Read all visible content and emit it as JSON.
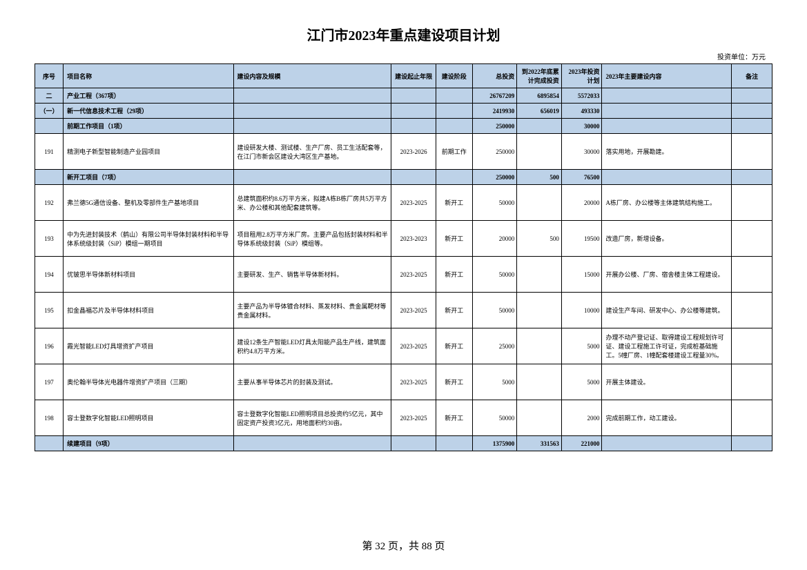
{
  "title": "江门市2023年重点建设项目计划",
  "unit_label": "投资单位：万元",
  "page_number": "第 32 页，共 88 页",
  "columns": {
    "seq": "序号",
    "name": "项目名称",
    "desc": "建设内容及规模",
    "period": "建设起止年限",
    "phase": "建设阶段",
    "total": "总投资",
    "cumulative": "到2022年底累计完成投资",
    "plan": "2023年投资计划",
    "content": "2023年主要建设内容",
    "remark": "备注"
  },
  "rows": [
    {
      "type": "group",
      "seq": "二",
      "name": "产业工程（367项）",
      "total": "26767209",
      "cumulative": "6895854",
      "plan": "5572033"
    },
    {
      "type": "group",
      "seq": "（一）",
      "name": "新一代信息技术工程（29项）",
      "total": "2419930",
      "cumulative": "656019",
      "plan": "493330"
    },
    {
      "type": "group",
      "seq": "",
      "name": "前期工作项目（1项）",
      "total": "250000",
      "cumulative": "",
      "plan": "30000"
    },
    {
      "type": "data",
      "seq": "191",
      "name": "精测电子新型智能制造产业园项目",
      "desc": "建设研发大楼、测试楼、生产厂房、员工生活配套等，在江门市新会区建设大湾区生产基地。",
      "period": "2023-2026",
      "phase": "前期工作",
      "total": "250000",
      "cumulative": "",
      "plan": "30000",
      "content": "落实用地，开展勘建。",
      "remark": ""
    },
    {
      "type": "group",
      "seq": "",
      "name": "新开工项目（7项）",
      "total": "250000",
      "cumulative": "500",
      "plan": "76500"
    },
    {
      "type": "data",
      "seq": "192",
      "name": "弗兰德5G通信设备、整机及零部件生产基地项目",
      "desc": "总建筑面积约8.6万平方米，拟建A栋B栋厂房共5万平方米、办公楼和其他配套建筑等。",
      "period": "2023-2025",
      "phase": "新开工",
      "total": "50000",
      "cumulative": "",
      "plan": "20000",
      "content": "A栋厂房、办公楼等主体建筑结构施工。",
      "remark": ""
    },
    {
      "type": "data",
      "seq": "193",
      "name": "中为先进封装技术（鹤山）有限公司半导体封装材料和半导体系统级封装（SiP）模组一期项目",
      "desc": "项目租用2.8万平方米厂房。主要产品包括封装材料和半导体系统级封装（SiP）模组等。",
      "period": "2023-2023",
      "phase": "新开工",
      "total": "20000",
      "cumulative": "500",
      "plan": "19500",
      "content": "改造厂房，新增设备。",
      "remark": ""
    },
    {
      "type": "data",
      "seq": "194",
      "name": "优铍思半导体新材料项目",
      "desc": "主要研发、生产、销售半导体新材料。",
      "period": "2023-2025",
      "phase": "新开工",
      "total": "50000",
      "cumulative": "",
      "plan": "15000",
      "content": "开展办公楼、厂房、宿舍楼主体工程建设。",
      "remark": ""
    },
    {
      "type": "data",
      "seq": "195",
      "name": "扣金晶福芯片及半导体材料项目",
      "desc": "主要产品为半导体镀合材料、蒸发材料、贵金属靶材等贵金属材料。",
      "period": "2023-2025",
      "phase": "新开工",
      "total": "50000",
      "cumulative": "",
      "plan": "10000",
      "content": "建设生产车间、研发中心、办公楼等建筑。",
      "remark": ""
    },
    {
      "type": "data",
      "seq": "196",
      "name": "霞光智能LED灯具增资扩产项目",
      "desc": "建设12条生产智能LED灯具太阳能产品生产线，建筑面积约4.8万平方米。",
      "period": "2023-2025",
      "phase": "新开工",
      "total": "25000",
      "cumulative": "",
      "plan": "5000",
      "content": "办理不动产登记证、取得建设工程规划许可证、建设工程施工许可证，完成桩基础施工。5幢厂房、1幢配套楼建设工程量30%。",
      "remark": ""
    },
    {
      "type": "data",
      "seq": "197",
      "name": "奥伦翰半导体光电器件增资扩产项目（三期）",
      "desc": "主要从事半导体芯片的封装及测试。",
      "period": "2023-2025",
      "phase": "新开工",
      "total": "5000",
      "cumulative": "",
      "plan": "5000",
      "content": "开展主体建设。",
      "remark": ""
    },
    {
      "type": "data",
      "seq": "198",
      "name": "容士登数字化智能LED照明项目",
      "desc": "容士登数字化智能LED照明项目总投资约5亿元，其中固定资产投资3亿元，用地面积约30亩。",
      "period": "2023-2025",
      "phase": "新开工",
      "total": "50000",
      "cumulative": "",
      "plan": "2000",
      "content": "完成前期工作，动工建设。",
      "remark": ""
    },
    {
      "type": "group",
      "seq": "",
      "name": "续建项目（9项）",
      "total": "1375900",
      "cumulative": "331563",
      "plan": "221000"
    }
  ]
}
